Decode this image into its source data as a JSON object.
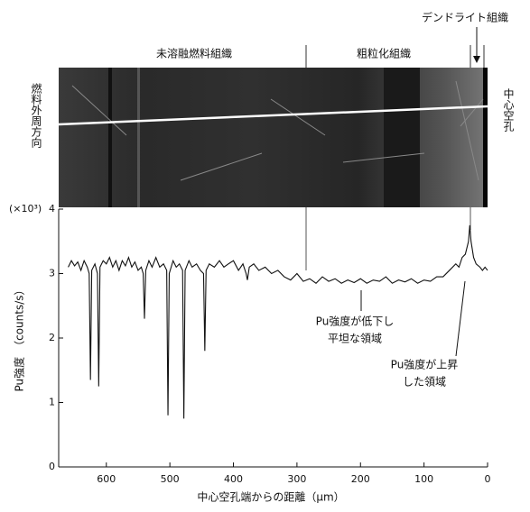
{
  "chart_data": {
    "type": "line",
    "y_unit_label": "(×10³)",
    "ylabel": "Pu強度　（counts/s）",
    "xlabel": "中心空孔端からの距離（μm）",
    "xlim": [
      675,
      0
    ],
    "xticks": [
      600,
      500,
      400,
      300,
      200,
      100,
      0
    ],
    "ylim": [
      0,
      4
    ],
    "yticks": [
      0,
      1,
      2,
      3,
      4
    ],
    "grid": false,
    "series": [
      {
        "color": "#111111",
        "x": [
          660,
          655,
          650,
          645,
          640,
          635,
          630,
          627,
          625,
          623,
          618,
          614,
          612,
          610,
          605,
          600,
          595,
          590,
          585,
          580,
          575,
          570,
          565,
          560,
          555,
          550,
          545,
          542,
          540,
          538,
          533,
          528,
          522,
          516,
          510,
          505,
          503,
          501,
          495,
          490,
          485,
          480,
          478,
          476,
          470,
          465,
          458,
          452,
          447,
          445,
          443,
          438,
          430,
          422,
          415,
          408,
          400,
          392,
          385,
          380,
          378,
          375,
          368,
          360,
          350,
          340,
          330,
          320,
          310,
          300,
          290,
          280,
          270,
          260,
          250,
          240,
          230,
          220,
          210,
          200,
          190,
          180,
          170,
          160,
          150,
          140,
          130,
          120,
          110,
          100,
          90,
          80,
          70,
          60,
          50,
          45,
          40,
          35,
          30,
          28,
          26,
          22,
          18,
          12,
          8,
          4,
          0
        ],
        "values": [
          3.1,
          3.2,
          3.12,
          3.18,
          3.05,
          3.2,
          3.1,
          3.0,
          1.35,
          3.05,
          3.15,
          3.0,
          1.25,
          3.1,
          3.2,
          3.15,
          3.25,
          3.1,
          3.2,
          3.05,
          3.2,
          3.12,
          3.25,
          3.1,
          3.18,
          3.05,
          3.1,
          3.0,
          2.3,
          3.05,
          3.2,
          3.1,
          3.25,
          3.1,
          3.15,
          3.05,
          0.8,
          3.0,
          3.2,
          3.1,
          3.15,
          3.05,
          0.75,
          3.05,
          3.2,
          3.1,
          3.15,
          3.05,
          3.0,
          1.8,
          3.05,
          3.15,
          3.1,
          3.2,
          3.1,
          3.15,
          3.2,
          3.05,
          3.15,
          3.0,
          2.9,
          3.1,
          3.15,
          3.05,
          3.1,
          3.0,
          3.05,
          2.95,
          2.9,
          3.0,
          2.88,
          2.92,
          2.85,
          2.95,
          2.88,
          2.92,
          2.85,
          2.9,
          2.86,
          2.92,
          2.85,
          2.9,
          2.88,
          2.95,
          2.85,
          2.9,
          2.87,
          2.92,
          2.85,
          2.9,
          2.88,
          2.95,
          2.95,
          3.05,
          3.15,
          3.1,
          3.25,
          3.3,
          3.5,
          3.75,
          3.5,
          3.25,
          3.15,
          3.1,
          3.05,
          3.1,
          3.05
        ]
      }
    ],
    "annotations": [
      {
        "lines": [
          "Pu強度が低下し",
          "平坦な領域"
        ]
      },
      {
        "lines": [
          "Pu強度が上昇",
          "した領域"
        ]
      }
    ],
    "image_labels": {
      "unmelted": "未溶融燃料組織",
      "coarse": "粗粒化組織",
      "dendrite": "デンドライト組織",
      "outer": "燃料外周方向",
      "hole": "中心空孔"
    }
  }
}
